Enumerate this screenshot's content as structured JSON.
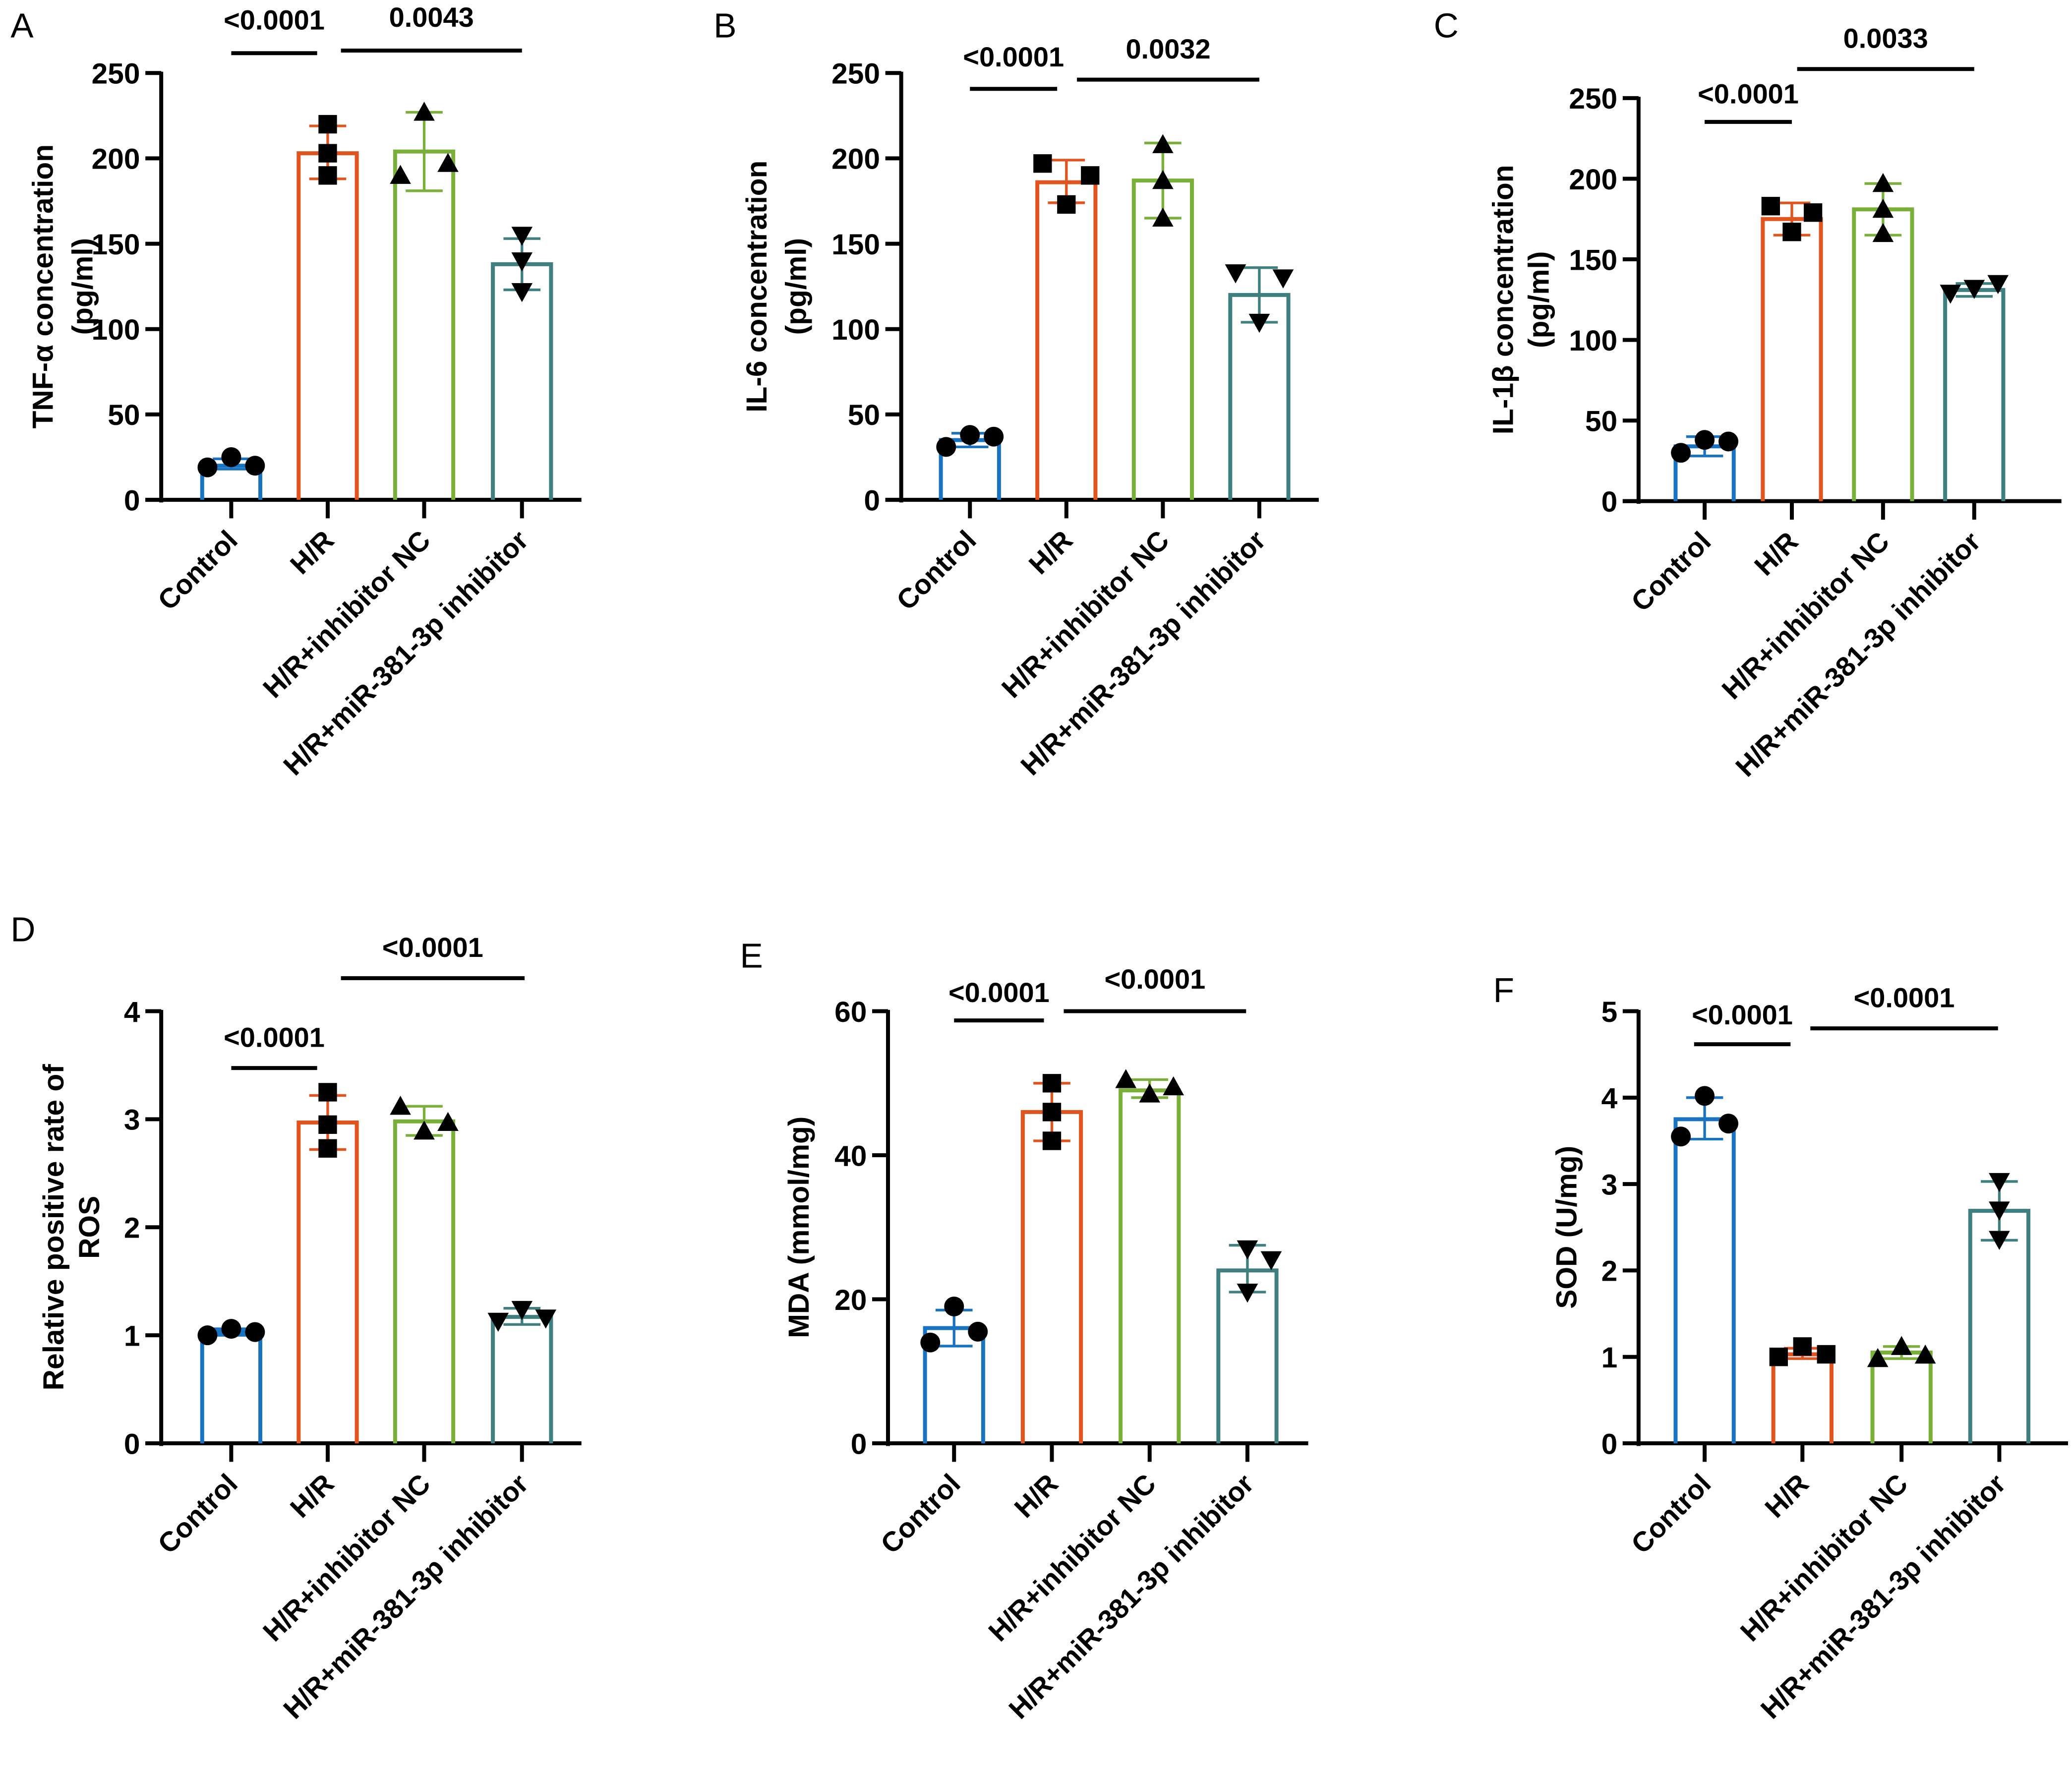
{
  "colors": {
    "Control": "#1a73c1",
    "H/R": "#e0541f",
    "H/R+inhibitor NC": "#7ab03a",
    "H/R+miR-381-3p inhibitor": "#3f7f7f"
  },
  "markers": [
    "circle",
    "square",
    "triangle-up",
    "triangle-down"
  ],
  "chart_data": [
    {
      "panel": "A",
      "type": "bar",
      "categories": [
        "Control",
        "H/R",
        "H/R+inhibitor NC",
        "H/R+miR-381-3p inhibitor"
      ],
      "ylabel": [
        "TNF-α concentration",
        "(pg/ml)"
      ],
      "ylim": [
        0,
        250
      ],
      "yticks": [
        0,
        50,
        100,
        150,
        200,
        250
      ],
      "means": [
        20,
        203,
        204,
        138
      ],
      "err_low": [
        18,
        188,
        181,
        123
      ],
      "err_high": [
        24,
        219,
        227,
        153
      ],
      "points": [
        [
          19,
          25,
          20
        ],
        [
          220,
          203,
          190
        ],
        [
          190,
          227,
          197
        ],
        [
          155,
          140,
          122
        ]
      ],
      "comparisons": [
        {
          "groups": [
            "Control",
            "H/R"
          ],
          "p": "<0.0001"
        },
        {
          "groups": [
            "H/R",
            "H/R+miR-381-3p inhibitor"
          ],
          "p": "0.0043"
        }
      ]
    },
    {
      "panel": "B",
      "type": "bar",
      "categories": [
        "Control",
        "H/R",
        "H/R+inhibitor NC",
        "H/R+miR-381-3p inhibitor"
      ],
      "ylabel": [
        "IL-6 concentration",
        "(pg/ml)"
      ],
      "ylim": [
        0,
        250
      ],
      "yticks": [
        0,
        50,
        100,
        150,
        200,
        250
      ],
      "means": [
        35,
        186,
        187,
        120
      ],
      "err_low": [
        31,
        174,
        165,
        104
      ],
      "err_high": [
        39,
        199,
        209,
        136
      ],
      "points": [
        [
          31,
          38,
          37
        ],
        [
          197,
          173,
          190
        ],
        [
          208,
          165,
          187
        ],
        [
          133,
          104,
          130
        ]
      ],
      "comparisons": [
        {
          "groups": [
            "Control",
            "H/R"
          ],
          "p": "<0.0001"
        },
        {
          "groups": [
            "H/R",
            "H/R+miR-381-3p inhibitor"
          ],
          "p": "0.0032"
        }
      ]
    },
    {
      "panel": "C",
      "type": "bar",
      "categories": [
        "Control",
        "H/R",
        "H/R+inhibitor NC",
        "H/R+miR-381-3p inhibitor"
      ],
      "ylabel": [
        "IL-1β concentration",
        "(pg/ml)"
      ],
      "ylim": [
        0,
        250
      ],
      "yticks": [
        0,
        50,
        100,
        150,
        200,
        250
      ],
      "means": [
        34,
        175,
        181,
        131
      ],
      "err_low": [
        28,
        165,
        165,
        127
      ],
      "err_high": [
        40,
        185,
        197,
        135
      ],
      "points": [
        [
          30,
          38,
          37
        ],
        [
          183,
          167,
          179
        ],
        [
          197,
          166,
          181
        ],
        [
          129,
          132,
          135
        ]
      ],
      "comparisons": [
        {
          "groups": [
            "Control",
            "H/R"
          ],
          "p": "<0.0001"
        },
        {
          "groups": [
            "H/R",
            "H/R+miR-381-3p inhibitor"
          ],
          "p": "0.0033"
        }
      ]
    },
    {
      "panel": "D",
      "type": "bar",
      "categories": [
        "Control",
        "H/R",
        "H/R+inhibitor NC",
        "H/R+miR-381-3p inhibitor"
      ],
      "ylabel": [
        "Relative positive rate of",
        "ROS"
      ],
      "ylim": [
        0,
        4
      ],
      "yticks": [
        0,
        1,
        2,
        3,
        4
      ],
      "means": [
        1.03,
        2.97,
        2.98,
        1.17
      ],
      "err_low": [
        1.0,
        2.72,
        2.85,
        1.1
      ],
      "err_high": [
        1.06,
        3.22,
        3.12,
        1.25
      ],
      "points": [
        [
          1.0,
          1.06,
          1.03
        ],
        [
          3.25,
          2.95,
          2.73
        ],
        [
          3.12,
          2.89,
          2.97
        ],
        [
          1.13,
          1.24,
          1.16
        ]
      ],
      "comparisons": [
        {
          "groups": [
            "Control",
            "H/R"
          ],
          "p": "<0.0001"
        },
        {
          "groups": [
            "H/R",
            "H/R+miR-381-3p inhibitor"
          ],
          "p": "<0.0001"
        }
      ]
    },
    {
      "panel": "E",
      "type": "bar",
      "categories": [
        "Control",
        "H/R",
        "H/R+inhibitor NC",
        "H/R+miR-381-3p inhibitor"
      ],
      "ylabel": [
        "MDA (mmol/mg)"
      ],
      "ylim": [
        0,
        60
      ],
      "yticks": [
        0,
        20,
        40,
        60
      ],
      "means": [
        16,
        46,
        49,
        24
      ],
      "err_low": [
        13.5,
        42,
        48,
        21
      ],
      "err_high": [
        18.5,
        50,
        50.5,
        27.5
      ],
      "points": [
        [
          14,
          19,
          15.5
        ],
        [
          50,
          42,
          46
        ],
        [
          50.5,
          48.5,
          49.5
        ],
        [
          27,
          21,
          25.5
        ]
      ],
      "comparisons": [
        {
          "groups": [
            "Control",
            "H/R"
          ],
          "p": "<0.0001"
        },
        {
          "groups": [
            "H/R",
            "H/R+miR-381-3p inhibitor"
          ],
          "p": "<0.0001"
        }
      ]
    },
    {
      "panel": "F",
      "type": "bar",
      "categories": [
        "Control",
        "H/R",
        "H/R+inhibitor NC",
        "H/R+miR-381-3p inhibitor"
      ],
      "ylabel": [
        "SOD (U/mg)"
      ],
      "ylim": [
        0,
        5
      ],
      "yticks": [
        0,
        1,
        2,
        3,
        4,
        5
      ],
      "means": [
        3.75,
        1.03,
        1.05,
        2.69
      ],
      "err_low": [
        3.52,
        0.98,
        0.98,
        2.35
      ],
      "err_high": [
        4.0,
        1.1,
        1.12,
        3.03
      ],
      "points": [
        [
          3.55,
          4.02,
          3.7
        ],
        [
          1.0,
          1.12,
          1.03
        ],
        [
          0.98,
          1.12,
          1.02
        ],
        [
          3.03,
          2.7,
          2.36
        ]
      ],
      "comparisons": [
        {
          "groups": [
            "Control",
            "H/R"
          ],
          "p": "<0.0001"
        },
        {
          "groups": [
            "H/R",
            "H/R+miR-381-3p inhibitor"
          ],
          "p": "<0.0001"
        }
      ]
    }
  ]
}
